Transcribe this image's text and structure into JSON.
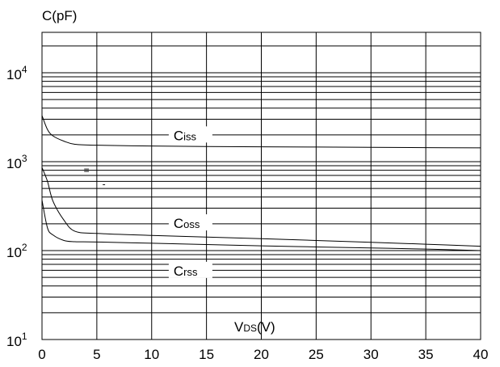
{
  "chart_data": {
    "type": "line",
    "title": "",
    "ylabel": "C(pF)",
    "xlabel_main": "V",
    "xlabel_sub": "DS",
    "xlabel_unit": "(V)",
    "xlim": [
      0,
      40
    ],
    "ylim": [
      10,
      20000
    ],
    "y_scale": "log",
    "grid": true,
    "x_ticks": [
      {
        "value": 0,
        "label": "0"
      },
      {
        "value": 5,
        "label": "5"
      },
      {
        "value": 10,
        "label": "10"
      },
      {
        "value": 15,
        "label": "15"
      },
      {
        "value": 20,
        "label": "20"
      },
      {
        "value": 25,
        "label": "25"
      },
      {
        "value": 30,
        "label": "30"
      },
      {
        "value": 35,
        "label": "35"
      },
      {
        "value": 40,
        "label": "40"
      }
    ],
    "y_ticks": [
      {
        "value": 10,
        "base": "10",
        "exp": "1"
      },
      {
        "value": 100,
        "base": "10",
        "exp": "2"
      },
      {
        "value": 1000,
        "base": "10",
        "exp": "3"
      },
      {
        "value": 10000,
        "base": "10",
        "exp": "4"
      }
    ],
    "series": [
      {
        "name": "Ciss",
        "label_main": "C",
        "label_sub": "iss",
        "label_at": {
          "x": 12,
          "y": 1900
        },
        "x": [
          0,
          0.5,
          1,
          2,
          3,
          5,
          10,
          15,
          20,
          25,
          30,
          35,
          40
        ],
        "y": [
          3300,
          2300,
          1950,
          1700,
          1570,
          1530,
          1500,
          1480,
          1470,
          1460,
          1450,
          1440,
          1430
        ]
      },
      {
        "name": "Coss",
        "label_main": "C",
        "label_sub": "oss",
        "label_at": {
          "x": 12,
          "y": 195
        },
        "x": [
          0,
          0.5,
          1,
          2,
          3,
          5,
          10,
          15,
          20,
          25,
          30,
          35,
          40
        ],
        "y": [
          860,
          600,
          360,
          220,
          165,
          156,
          148,
          142,
          136,
          130,
          124,
          118,
          112
        ]
      },
      {
        "name": "Crss",
        "label_main": "C",
        "label_sub": "rss",
        "label_at": {
          "x": 12,
          "y": 57
        },
        "x": [
          0,
          0.5,
          1,
          2,
          3,
          5,
          10,
          15,
          20,
          25,
          30,
          35,
          40
        ],
        "y": [
          370,
          180,
          150,
          130,
          126,
          125,
          121,
          117,
          113,
          110,
          107,
          104,
          100
        ]
      }
    ],
    "annotations": [
      {
        "text": "=",
        "x": 3.8,
        "y": 800
      },
      {
        "text": "-",
        "x": 5.5,
        "y": 560
      }
    ]
  }
}
